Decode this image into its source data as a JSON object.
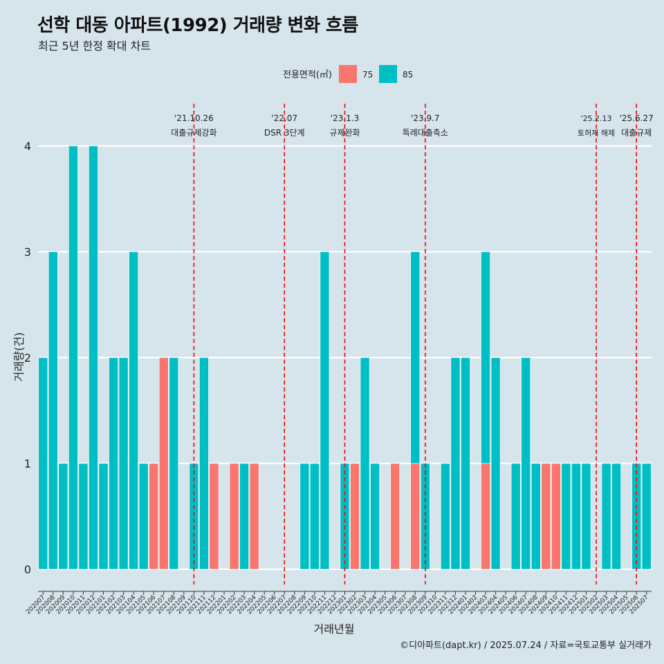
{
  "title": "선학 대동 아파트(1992) 거래량 변화 흐름",
  "subtitle": "최근 5년 한정 확대 차트",
  "caption": "©디아파트(dapt.kr) / 2025.07.24 / 자료=국토교통부 실거래가",
  "colors": {
    "background": "#d6e4eb",
    "s75": "#f8766d",
    "s85": "#00bfc4",
    "event": "#ff0000",
    "grid": "#ffffff"
  },
  "chart_data": {
    "type": "bar",
    "stacked": true,
    "title": "선학 대동 아파트(1992) 거래량 변화 흐름",
    "xlabel": "거래년월",
    "ylabel": "거래량(건)",
    "ylim": [
      0,
      4
    ],
    "yticks": [
      0,
      1,
      2,
      3,
      4
    ],
    "legend": {
      "title": "전용면적(㎡)",
      "position": "top",
      "items": [
        {
          "name": "75",
          "color": "#f8766d"
        },
        {
          "name": "85",
          "color": "#00bfc4"
        }
      ]
    },
    "categories": [
      "202007",
      "202008",
      "202009",
      "202010",
      "202011",
      "202012",
      "202101",
      "202102",
      "202103",
      "202104",
      "202105",
      "202106",
      "202107",
      "202108",
      "202109",
      "202110",
      "202111",
      "202112",
      "202201",
      "202202",
      "202203",
      "202204",
      "202205",
      "202206",
      "202207",
      "202208",
      "202209",
      "202210",
      "202211",
      "202212",
      "202301",
      "202302",
      "202303",
      "202304",
      "202305",
      "202306",
      "202307",
      "202308",
      "202309",
      "202310",
      "202311",
      "202312",
      "202401",
      "202402",
      "202403",
      "202404",
      "202405",
      "202406",
      "202407",
      "202408",
      "202409",
      "202410",
      "202411",
      "202412",
      "202501",
      "202502",
      "202503",
      "202504",
      "202505",
      "202506",
      "202507"
    ],
    "series": [
      {
        "name": "75",
        "values": [
          0,
          0,
          0,
          0,
          0,
          0,
          0,
          0,
          0,
          0,
          0,
          1,
          2,
          0,
          0,
          0,
          0,
          1,
          0,
          1,
          0,
          1,
          0,
          0,
          0,
          0,
          0,
          0,
          0,
          0,
          0,
          1,
          0,
          0,
          0,
          1,
          0,
          1,
          0,
          0,
          0,
          0,
          0,
          0,
          1,
          0,
          0,
          0,
          0,
          0,
          1,
          1,
          0,
          0,
          0,
          0,
          0,
          0,
          0,
          0,
          0
        ]
      },
      {
        "name": "85",
        "values": [
          2,
          3,
          1,
          4,
          1,
          4,
          1,
          2,
          2,
          3,
          1,
          0,
          0,
          2,
          0,
          1,
          2,
          0,
          0,
          0,
          1,
          0,
          0,
          0,
          0,
          0,
          1,
          1,
          3,
          0,
          1,
          0,
          2,
          1,
          0,
          0,
          0,
          2,
          1,
          0,
          1,
          2,
          2,
          0,
          2,
          2,
          0,
          1,
          2,
          1,
          0,
          0,
          1,
          1,
          1,
          0,
          1,
          1,
          0,
          1,
          1
        ]
      }
    ],
    "events": [
      {
        "date": "'21.10.26",
        "label": "대출규제강화",
        "position": 15
      },
      {
        "date": "'22.07",
        "label": "DSR 3단계",
        "position": 24
      },
      {
        "date": "'23.1.3",
        "label": "규제완화",
        "position": 30
      },
      {
        "date": "'23.9.7",
        "label": "특례대출축소",
        "position": 38
      },
      {
        "date": "'25.2.13",
        "label": "토허제 해제",
        "position": 55
      },
      {
        "date": "'25.6.27",
        "label": "대출규제",
        "position": 59
      }
    ]
  }
}
